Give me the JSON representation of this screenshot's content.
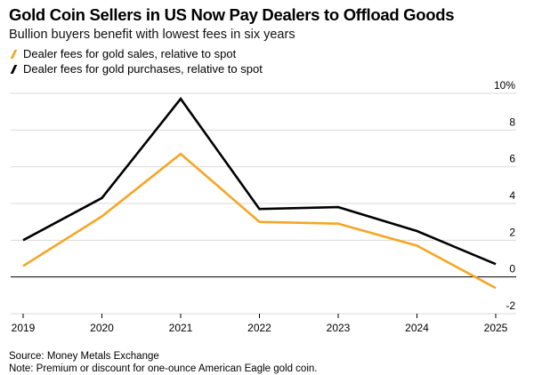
{
  "header": {
    "title": "Gold Coin Sellers in US Now Pay Dealers to Offload Goods",
    "subtitle": "Bullion buyers benefit with lowest fees in six years"
  },
  "legend": [
    {
      "label": "Dealer fees for gold sales, relative to spot",
      "color": "#f5a623"
    },
    {
      "label": "Dealer fees for gold purchases, relative to spot",
      "color": "#000000"
    }
  ],
  "footer": {
    "source": "Source: Money Metals Exchange",
    "note": "Note: Premium or discount for one-ounce American Eagle gold coin."
  },
  "chart_data": {
    "type": "line",
    "x": [
      "2019",
      "2020",
      "2021",
      "2022",
      "2023",
      "2024",
      "2025"
    ],
    "series": [
      {
        "name": "Dealer fees for gold sales, relative to spot",
        "color": "#f5a623",
        "values": [
          0.6,
          3.3,
          6.7,
          3.0,
          2.9,
          1.7,
          -0.6
        ]
      },
      {
        "name": "Dealer fees for gold purchases, relative to spot",
        "color": "#000000",
        "values": [
          2.0,
          4.3,
          9.7,
          3.7,
          3.8,
          2.5,
          0.7
        ]
      }
    ],
    "ylim": [
      -2,
      10
    ],
    "yticks": [
      {
        "value": 10,
        "label": "10%"
      },
      {
        "value": 8,
        "label": "8"
      },
      {
        "value": 6,
        "label": "6"
      },
      {
        "value": 4,
        "label": "4"
      },
      {
        "value": 2,
        "label": "2"
      },
      {
        "value": 0,
        "label": "0"
      },
      {
        "value": -2,
        "label": "-2"
      }
    ],
    "grid": true,
    "zero_line": true,
    "y_axis_side": "right"
  }
}
